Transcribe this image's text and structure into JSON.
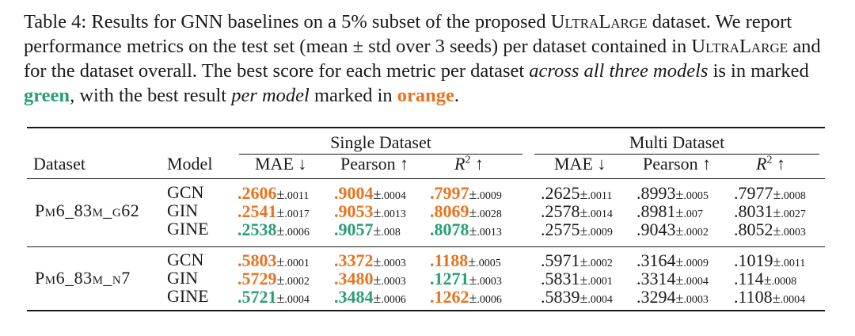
{
  "caption": {
    "label": "Table 4:",
    "part1": "Results for GNN baselines on a 5% subset of the proposed",
    "ds_name": "UltraLarge",
    "part2": "dataset. We report performance metrics on the test set (mean ± std over 3 seeds) per dataset contained in",
    "part3": "and for the dataset overall. The best score for each metric per dataset",
    "em1": "across all three models",
    "part4": "is in marked",
    "green_word": "green",
    "part5": ", with the best result",
    "em2": "per model",
    "part6": "marked in",
    "orange_word": "orange",
    "part7": "."
  },
  "headers": {
    "dataset": "Dataset",
    "model": "Model",
    "single": "Single Dataset",
    "multi": "Multi Dataset",
    "mae": "MAE ↓",
    "pearson": "Pearson ↑",
    "r2": "R",
    "r2_sup": "2",
    "r2_arrow": " ↑"
  },
  "colors": {
    "green": "#2a9d78",
    "orange": "#e8731f"
  },
  "pm": "±",
  "groups": [
    {
      "dataset": "Pm6_83m_g62",
      "rows": [
        {
          "model": "GCN",
          "cells": [
            {
              "v": ".2606",
              "s": ".0011",
              "c": "o"
            },
            {
              "v": ".9004",
              "s": ".0004",
              "c": "o"
            },
            {
              "v": ".7997",
              "s": ".0009",
              "c": "o"
            },
            {
              "v": ".2625",
              "s": ".0011",
              "c": "b"
            },
            {
              "v": ".8993",
              "s": ".0005",
              "c": "b"
            },
            {
              "v": ".7977",
              "s": ".0008",
              "c": "b"
            }
          ]
        },
        {
          "model": "GIN",
          "cells": [
            {
              "v": ".2541",
              "s": ".0017",
              "c": "o"
            },
            {
              "v": ".9053",
              "s": ".0013",
              "c": "o"
            },
            {
              "v": ".8069",
              "s": ".0028",
              "c": "o"
            },
            {
              "v": ".2578",
              "s": ".0014",
              "c": "b"
            },
            {
              "v": ".8981",
              "s": ".007",
              "c": "b"
            },
            {
              "v": ".8031",
              "s": ".0027",
              "c": "b"
            }
          ]
        },
        {
          "model": "GINE",
          "cells": [
            {
              "v": ".2538",
              "s": ".0006",
              "c": "g"
            },
            {
              "v": ".9057",
              "s": ".008",
              "c": "g"
            },
            {
              "v": ".8078",
              "s": ".0013",
              "c": "g"
            },
            {
              "v": ".2575",
              "s": ".0009",
              "c": "b"
            },
            {
              "v": ".9043",
              "s": ".0002",
              "c": "b"
            },
            {
              "v": ".8052",
              "s": ".0003",
              "c": "b"
            }
          ]
        }
      ]
    },
    {
      "dataset": "Pm6_83m_n7",
      "rows": [
        {
          "model": "GCN",
          "cells": [
            {
              "v": ".5803",
              "s": ".0001",
              "c": "o"
            },
            {
              "v": ".3372",
              "s": ".0003",
              "c": "o"
            },
            {
              "v": ".1188",
              "s": ".0005",
              "c": "o"
            },
            {
              "v": ".5971",
              "s": ".0002",
              "c": "b"
            },
            {
              "v": ".3164",
              "s": ".0009",
              "c": "b"
            },
            {
              "v": ".1019",
              "s": ".0011",
              "c": "b"
            }
          ]
        },
        {
          "model": "GIN",
          "cells": [
            {
              "v": ".5729",
              "s": ".0002",
              "c": "o"
            },
            {
              "v": ".3480",
              "s": ".0003",
              "c": "o"
            },
            {
              "v": ".1271",
              "s": ".0003",
              "c": "g"
            },
            {
              "v": ".5831",
              "s": ".0001",
              "c": "b"
            },
            {
              "v": ".3314",
              "s": ".0004",
              "c": "b"
            },
            {
              "v": ".114",
              "s": ".0008",
              "c": "b"
            }
          ]
        },
        {
          "model": "GINE",
          "cells": [
            {
              "v": ".5721",
              "s": ".0004",
              "c": "g"
            },
            {
              "v": ".3484",
              "s": ".0006",
              "c": "g"
            },
            {
              "v": ".1262",
              "s": ".0006",
              "c": "o"
            },
            {
              "v": ".5839",
              "s": ".0004",
              "c": "b"
            },
            {
              "v": ".3294",
              "s": ".0003",
              "c": "b"
            },
            {
              "v": ".1108",
              "s": ".0004",
              "c": "b"
            }
          ]
        }
      ]
    }
  ]
}
